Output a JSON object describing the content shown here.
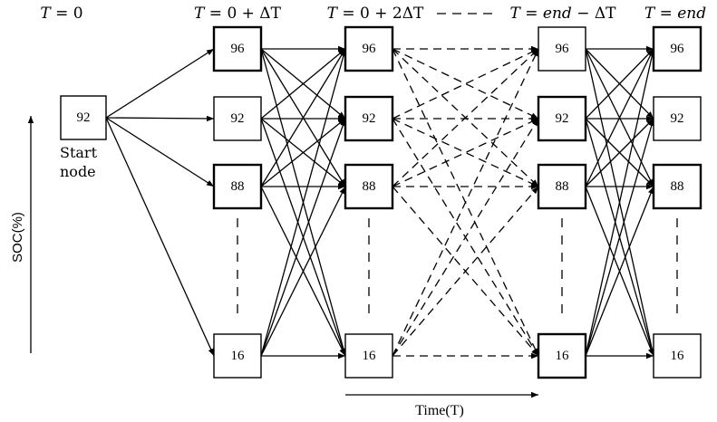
{
  "time_labels": {
    "t0": {
      "var": "T",
      "rest": " = 0"
    },
    "t1": {
      "var": "T",
      "rest": " = 0 + ΔT"
    },
    "t2": {
      "var": "T",
      "rest": " = 0 + 2ΔT"
    },
    "t3": {
      "var": "T",
      "rest": " = ",
      "it2": "end",
      "rest2": " − ΔT"
    },
    "t4": {
      "var": "T",
      "rest": " = ",
      "it2": "end"
    }
  },
  "start_node": {
    "value": "92",
    "label_line1": "Start",
    "label_line2": "node"
  },
  "columns": [
    {
      "id": "c1",
      "values": [
        "96",
        "92",
        "88",
        "16"
      ]
    },
    {
      "id": "c2",
      "values": [
        "96",
        "92",
        "88",
        "16"
      ]
    },
    {
      "id": "c3",
      "values": [
        "96",
        "92",
        "88",
        "16"
      ]
    },
    {
      "id": "c4",
      "values": [
        "96",
        "92",
        "88",
        "16"
      ]
    }
  ],
  "axis": {
    "y_label": "SOC(%)",
    "x_label": "Time(T)"
  }
}
